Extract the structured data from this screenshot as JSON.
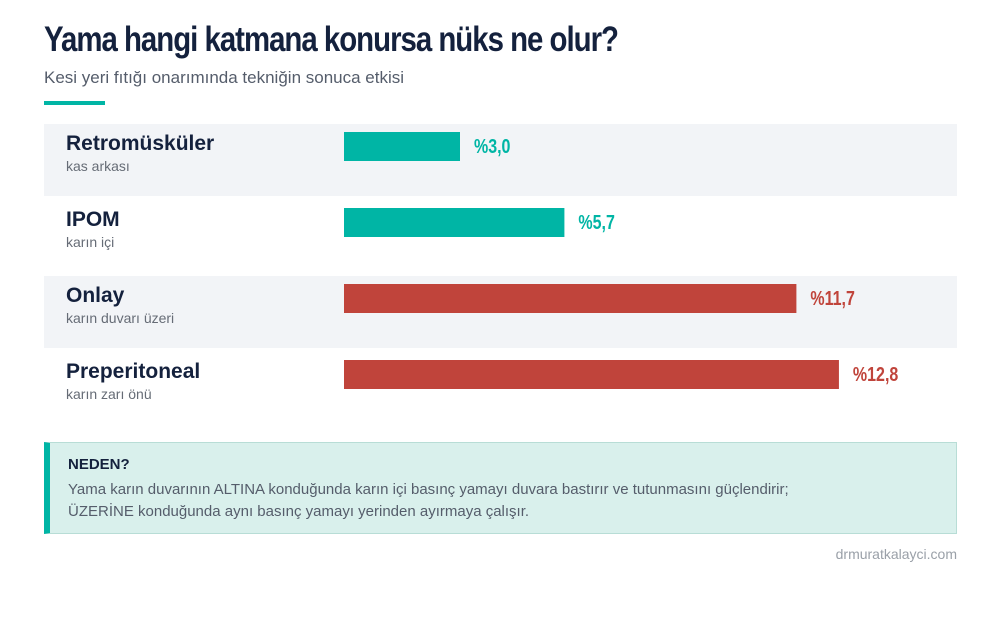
{
  "header": {
    "title": "Yama hangi katmana konursa nüks ne olur?",
    "subtitle": "Kesi yeri fıtığı onarımında tekniğin sonuca etkisi"
  },
  "chart_data": {
    "type": "bar",
    "orientation": "horizontal",
    "title": "Yama hangi katmana konursa nüks ne olur?",
    "subtitle": "Kesi yeri fıtığı onarımında tekniğin sonuca etkisi",
    "value_prefix": "%",
    "decimal_separator": ",",
    "xlim": [
      0,
      15
    ],
    "grid": false,
    "legend": "none",
    "rows": [
      {
        "name": "Retromüsküler",
        "sub": "kas arkası",
        "value": 3.0,
        "color": "#00b5a5"
      },
      {
        "name": "IPOM",
        "sub": "karın içi",
        "value": 5.7,
        "color": "#00b5a5"
      },
      {
        "name": "Onlay",
        "sub": "karın duvarı üzeri",
        "value": 11.7,
        "color": "#c0443b"
      },
      {
        "name": "Preperitoneal",
        "sub": "karın zarı önü",
        "value": 12.8,
        "color": "#c0443b"
      }
    ]
  },
  "note": {
    "title": "NEDEN?",
    "body_line1": "Yama karın duvarının ALTINA konduğunda karın içi basınç yamayı duvara bastırır ve tutunmasını güçlendirir;",
    "body_line2": "ÜZERİNE konduğunda aynı basınç yamayı yerinden ayırmaya çalışır."
  },
  "source": "drmuratkalayci.com",
  "colors": {
    "accent": "#00b5a5",
    "danger": "#c0443b",
    "title": "#14213d",
    "row_band": "#f2f4f7"
  }
}
